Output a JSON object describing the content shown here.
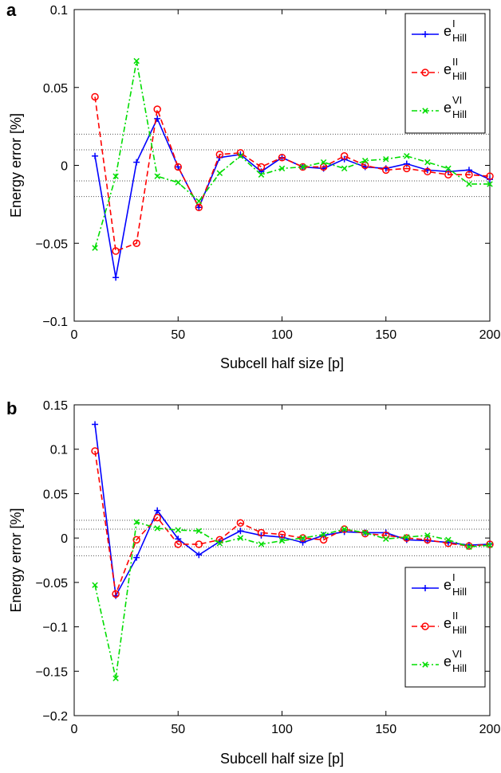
{
  "chart_data": [
    {
      "panel": "a",
      "type": "line",
      "xlabel": "Subcell half size [p]",
      "ylabel": "Energy error [%]",
      "xlim": [
        0,
        200
      ],
      "ylim": [
        -0.1,
        0.1
      ],
      "xticks": [
        0,
        50,
        100,
        150,
        200
      ],
      "xtick_labels": [
        "0",
        "50",
        "100",
        "150",
        "200"
      ],
      "yticks": [
        -0.1,
        -0.05,
        0,
        0.05,
        0.1
      ],
      "ytick_labels": [
        "−0.1",
        "−0.05",
        "0",
        "0.05",
        "0.1"
      ],
      "reference_lines": [
        0.02,
        0.01,
        -0.01,
        -0.02
      ],
      "legend_position": "top-right",
      "x": [
        10,
        20,
        30,
        40,
        50,
        60,
        70,
        80,
        90,
        100,
        110,
        120,
        130,
        140,
        150,
        160,
        170,
        180,
        190,
        200
      ],
      "series": [
        {
          "name": "e",
          "sup": "I",
          "sub": "Hill",
          "color": "#0000ff",
          "dash": "solid",
          "marker": "plus",
          "values": [
            0.006,
            -0.072,
            0.002,
            0.03,
            -0.001,
            -0.027,
            0.005,
            0.007,
            -0.004,
            0.005,
            -0.001,
            -0.002,
            0.004,
            -0.001,
            -0.002,
            0.001,
            -0.003,
            -0.004,
            -0.003,
            -0.009
          ]
        },
        {
          "name": "e",
          "sup": "II",
          "sub": "Hill",
          "color": "#ff0000",
          "dash": "dashed",
          "marker": "circle",
          "values": [
            0.044,
            -0.055,
            -0.05,
            0.036,
            -0.001,
            -0.027,
            0.007,
            0.008,
            -0.001,
            0.005,
            -0.001,
            -0.001,
            0.006,
            0.0,
            -0.003,
            -0.002,
            -0.004,
            -0.006,
            -0.006,
            -0.007
          ]
        },
        {
          "name": "e",
          "sup": "VI",
          "sub": "Hill",
          "color": "#00dd00",
          "dash": "dashdot",
          "marker": "x",
          "values": [
            -0.053,
            -0.007,
            0.067,
            -0.007,
            -0.011,
            -0.023,
            -0.005,
            0.006,
            -0.006,
            -0.002,
            -0.001,
            0.002,
            -0.002,
            0.003,
            0.004,
            0.006,
            0.002,
            -0.002,
            -0.012,
            -0.012
          ]
        }
      ]
    },
    {
      "panel": "b",
      "type": "line",
      "xlabel": "Subcell half size [p]",
      "ylabel": "Energy error [%]",
      "xlim": [
        0,
        200
      ],
      "ylim": [
        -0.2,
        0.15
      ],
      "xticks": [
        0,
        50,
        100,
        150,
        200
      ],
      "xtick_labels": [
        "0",
        "50",
        "100",
        "150",
        "200"
      ],
      "yticks": [
        -0.2,
        -0.15,
        -0.1,
        -0.05,
        0,
        0.05,
        0.1,
        0.15
      ],
      "ytick_labels": [
        "−0.2",
        "−0.15",
        "−0.1",
        "−0.05",
        "0",
        "0.05",
        "0.1",
        "0.15"
      ],
      "reference_lines": [
        0.02,
        0.01,
        -0.01,
        -0.02
      ],
      "legend_position": "bottom-right",
      "x": [
        10,
        20,
        30,
        40,
        50,
        60,
        70,
        80,
        90,
        100,
        110,
        120,
        130,
        140,
        150,
        160,
        170,
        180,
        190,
        200
      ],
      "series": [
        {
          "name": "e",
          "sup": "I",
          "sub": "Hill",
          "color": "#0000ff",
          "dash": "solid",
          "marker": "plus",
          "values": [
            0.128,
            -0.065,
            -0.022,
            0.031,
            -0.001,
            -0.019,
            -0.004,
            0.008,
            0.003,
            0.001,
            -0.005,
            0.003,
            0.007,
            0.006,
            0.006,
            -0.002,
            -0.003,
            -0.005,
            -0.008,
            -0.007
          ]
        },
        {
          "name": "e",
          "sup": "II",
          "sub": "Hill",
          "color": "#ff0000",
          "dash": "dashed",
          "marker": "circle",
          "values": [
            0.098,
            -0.063,
            -0.002,
            0.023,
            -0.007,
            -0.007,
            -0.002,
            0.017,
            0.006,
            0.004,
            0.0,
            -0.002,
            0.01,
            0.005,
            0.003,
            0.0,
            -0.002,
            -0.006,
            -0.009,
            -0.007
          ]
        },
        {
          "name": "e",
          "sup": "VI",
          "sub": "Hill",
          "color": "#00dd00",
          "dash": "dashdot",
          "marker": "x",
          "values": [
            -0.053,
            -0.158,
            0.018,
            0.011,
            0.009,
            0.008,
            -0.006,
            0.0,
            -0.007,
            -0.003,
            0.0,
            0.004,
            0.01,
            0.006,
            -0.001,
            0.001,
            0.003,
            -0.002,
            -0.01,
            -0.008
          ]
        }
      ]
    }
  ]
}
